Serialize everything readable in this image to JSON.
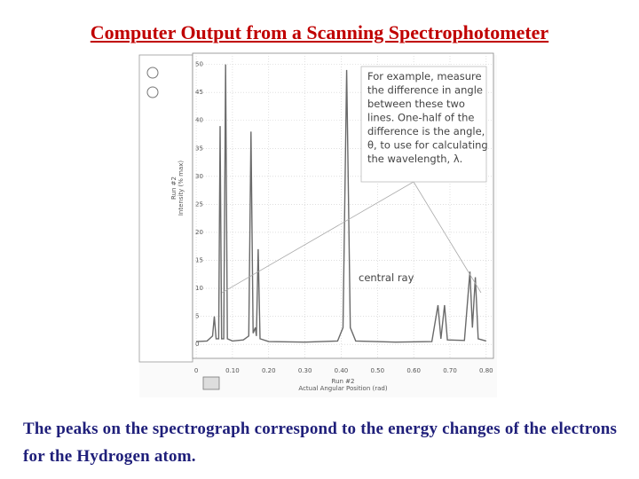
{
  "slide": {
    "title": "Computer Output from a Scanning Spectrophotometer",
    "caption": "The peaks on the spectrograph correspond to the energy changes of the electrons for the Hydrogen atom."
  },
  "chart_data": {
    "type": "line",
    "x_label": [
      "Run #2",
      "Actual Angular Position (rad)"
    ],
    "y_label": [
      "Run #2",
      "Intensity (% max)"
    ],
    "annotation": [
      "For example, measure",
      "the difference in angle",
      "between these two",
      "lines. One-half of the",
      "difference is the angle,",
      "θ, to use for calculating",
      "the wavelength, λ."
    ],
    "ray_label": "central ray",
    "color": "#6a6a6a",
    "x": [
      0,
      0.03,
      0.045,
      0.05,
      0.055,
      0.062,
      0.066,
      0.07,
      0.076,
      0.081,
      0.086,
      0.1,
      0.13,
      0.145,
      0.151,
      0.157,
      0.163,
      0.166,
      0.171,
      0.176,
      0.2,
      0.3,
      0.39,
      0.405,
      0.415,
      0.425,
      0.44,
      0.55,
      0.65,
      0.667,
      0.675,
      0.685,
      0.693,
      0.74,
      0.755,
      0.762,
      0.77,
      0.778,
      0.8
    ],
    "values": [
      0.5,
      0.6,
      1.5,
      5,
      1,
      1,
      39,
      1,
      1,
      50,
      1,
      0.6,
      0.8,
      1.5,
      38,
      2,
      3,
      1.5,
      17,
      1,
      0.5,
      0.4,
      0.6,
      3,
      49,
      3,
      0.6,
      0.4,
      0.5,
      7,
      1,
      7,
      0.8,
      0.7,
      13,
      3,
      12,
      1,
      0.6
    ],
    "xlim": [
      -0.01,
      0.82
    ],
    "ylim": [
      -2.5,
      52
    ],
    "xticks": [
      0,
      {
        "value": 0.1,
        "label": "0.10"
      },
      {
        "value": 0.2,
        "label": "0.20"
      },
      {
        "value": 0.3,
        "label": "0.30"
      },
      {
        "value": 0.4,
        "label": "0.40"
      },
      {
        "value": 0.5,
        "label": "0.50"
      },
      {
        "value": 0.6,
        "label": "0.60"
      },
      {
        "value": 0.7,
        "label": "0.70"
      },
      {
        "value": 0.8,
        "label": "0.80"
      }
    ],
    "yticks": [
      0,
      5,
      10,
      15,
      20,
      25,
      30,
      35,
      40,
      45,
      50
    ],
    "grid": true
  }
}
